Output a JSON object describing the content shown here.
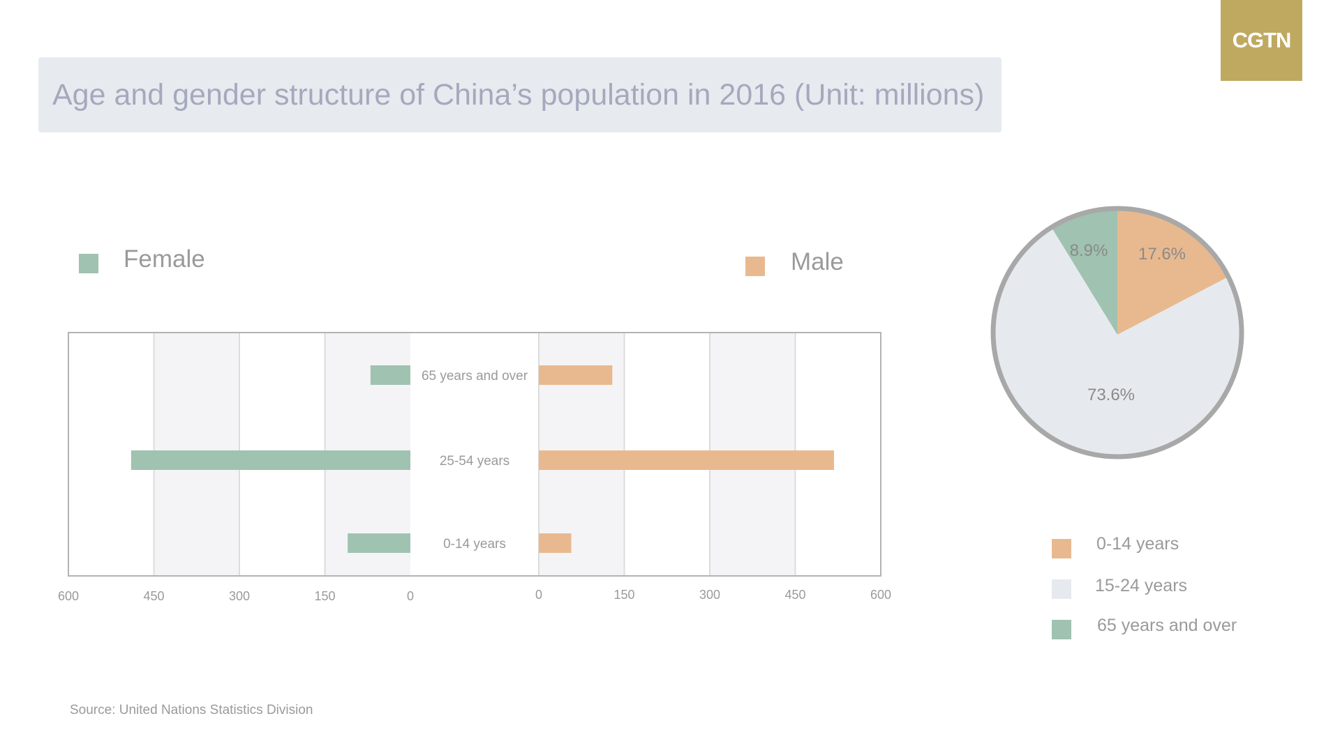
{
  "title": "Age and gender structure of China’s population in 2016 (Unit: millions)",
  "logo": "CGTN",
  "source": "Source: United Nations Statistics Division",
  "colors": {
    "female": "#a0c2b1",
    "male": "#e8b98e",
    "age_15_24": "#e6eaee",
    "title_bg": "#e7ebef",
    "logo_bg": "#bfa960"
  },
  "chart_data": [
    {
      "type": "bar",
      "orientation": "horizontal",
      "layout": "population-pyramid",
      "categories": [
        "65 years and over",
        "25-54 years",
        "0-14 years"
      ],
      "series": [
        {
          "name": "Female",
          "values": [
            70,
            490,
            110
          ]
        },
        {
          "name": "Male",
          "values": [
            129,
            518,
            57
          ]
        }
      ],
      "xlim": [
        0,
        600
      ],
      "female_ticks": [
        "600",
        "450",
        "300",
        "150",
        "0"
      ],
      "male_ticks": [
        "0",
        "150",
        "300",
        "450",
        "600"
      ],
      "legend_position": "top",
      "grid": true
    },
    {
      "type": "pie",
      "labels": [
        "0-14 years",
        "15-24 years",
        "65 years and over"
      ],
      "values": [
        17.6,
        73.6,
        8.9
      ],
      "value_labels": [
        "17.6%",
        "73.6%",
        "8.9%"
      ],
      "legend_position": "bottom-right"
    }
  ]
}
